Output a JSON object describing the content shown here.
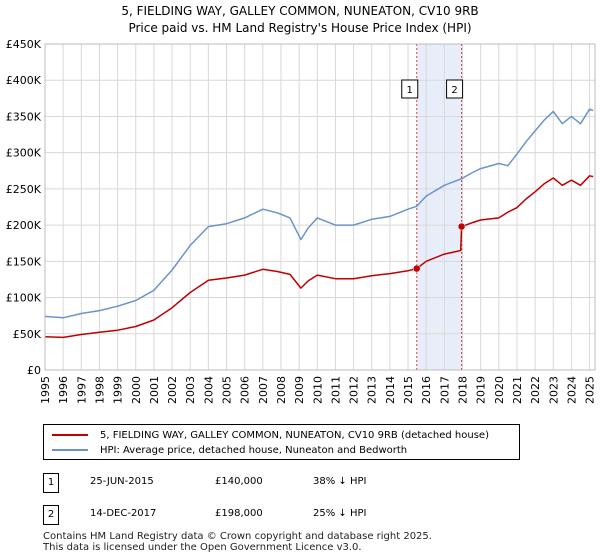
{
  "title_line1": "5, FIELDING WAY, GALLEY COMMON, NUNEATON, CV10 9RB",
  "title_line2": "Price paid vs. HM Land Registry's House Price Index (HPI)",
  "colors": {
    "hpi": "#6a93cc",
    "price": "#c00000",
    "shade": "#e8eef9",
    "grid": "#d8d8d8"
  },
  "legend": {
    "price_label": "5, FIELDING WAY, GALLEY COMMON, NUNEATON, CV10 9RB (detached house)",
    "hpi_label": "HPI: Average price, detached house, Nuneaton and Bedworth"
  },
  "transactions": [
    {
      "num": "1",
      "date": "25-JUN-2015",
      "price": "£140,000",
      "delta": "38% ↓ HPI"
    },
    {
      "num": "2",
      "date": "14-DEC-2017",
      "price": "£198,000",
      "delta": "25% ↓ HPI"
    }
  ],
  "footer_line1": "Contains HM Land Registry data © Crown copyright and database right 2025.",
  "footer_line2": "This data is licensed under the Open Government Licence v3.0.",
  "chart_data": {
    "type": "line",
    "xlim": [
      1995,
      2025.3
    ],
    "ylim": [
      0,
      450000
    ],
    "yticks": [
      0,
      50000,
      100000,
      150000,
      200000,
      250000,
      300000,
      350000,
      400000,
      450000
    ],
    "ytick_labels": [
      "£0",
      "£50K",
      "£100K",
      "£150K",
      "£200K",
      "£250K",
      "£300K",
      "£350K",
      "£400K",
      "£450K"
    ],
    "xticks": [
      "1995",
      "1996",
      "1997",
      "1998",
      "1999",
      "2000",
      "2001",
      "2002",
      "2003",
      "2004",
      "2005",
      "2006",
      "2007",
      "2008",
      "2009",
      "2010",
      "2011",
      "2012",
      "2013",
      "2014",
      "2015",
      "2016",
      "2017",
      "2018",
      "2019",
      "2020",
      "2021",
      "2022",
      "2023",
      "2024",
      "2025"
    ],
    "shaded_span": [
      2015.48,
      2017.95
    ],
    "markers": [
      {
        "label": "1",
        "x": 2015.48,
        "y": 140000
      },
      {
        "label": "2",
        "x": 2017.95,
        "y": 198000
      }
    ],
    "series": [
      {
        "name": "HPI: Average price, detached house, Nuneaton and Bedworth",
        "x": [
          1995,
          1996,
          1997,
          1998,
          1999,
          2000,
          2001,
          2002,
          2003,
          2004,
          2005,
          2006,
          2007,
          2007.8,
          2008.5,
          2009.1,
          2009.5,
          2010,
          2011,
          2012,
          2013,
          2014,
          2015,
          2015.48,
          2016,
          2017,
          2017.95,
          2018.5,
          2019,
          2020,
          2020.5,
          2021,
          2021.5,
          2022,
          2022.5,
          2023,
          2023.5,
          2024,
          2024.5,
          2025,
          2025.2
        ],
        "values": [
          74000,
          72000,
          78000,
          82000,
          88000,
          96000,
          110000,
          138000,
          172000,
          198000,
          202000,
          210000,
          222000,
          217000,
          210000,
          180000,
          196000,
          210000,
          200000,
          200000,
          208000,
          212000,
          222000,
          226000,
          240000,
          255000,
          264000,
          272000,
          278000,
          285000,
          282000,
          298000,
          315000,
          330000,
          345000,
          357000,
          340000,
          350000,
          340000,
          360000,
          358000
        ]
      },
      {
        "name": "5, FIELDING WAY, GALLEY COMMON, NUNEATON, CV10 9RB (detached house)",
        "x": [
          1995,
          1996,
          1997,
          1998,
          1999,
          2000,
          2001,
          2002,
          2003,
          2004,
          2005,
          2006,
          2007,
          2007.8,
          2008.5,
          2009.1,
          2009.5,
          2010,
          2011,
          2012,
          2013,
          2014,
          2015,
          2015.48,
          2016,
          2017,
          2017.9,
          2017.95,
          2018.5,
          2019,
          2020,
          2020.5,
          2021,
          2021.5,
          2022,
          2022.5,
          2023,
          2023.5,
          2024,
          2024.5,
          2025,
          2025.2
        ],
        "values": [
          46000,
          45000,
          49000,
          52000,
          55000,
          60000,
          69000,
          86000,
          107000,
          124000,
          127000,
          131000,
          139000,
          136000,
          132000,
          113000,
          123000,
          131000,
          126000,
          126000,
          130000,
          133000,
          137000,
          140000,
          150000,
          160000,
          165000,
          198000,
          203000,
          207000,
          210000,
          218000,
          224000,
          236000,
          246000,
          257000,
          265000,
          255000,
          262000,
          255000,
          268000,
          267000
        ]
      }
    ]
  }
}
